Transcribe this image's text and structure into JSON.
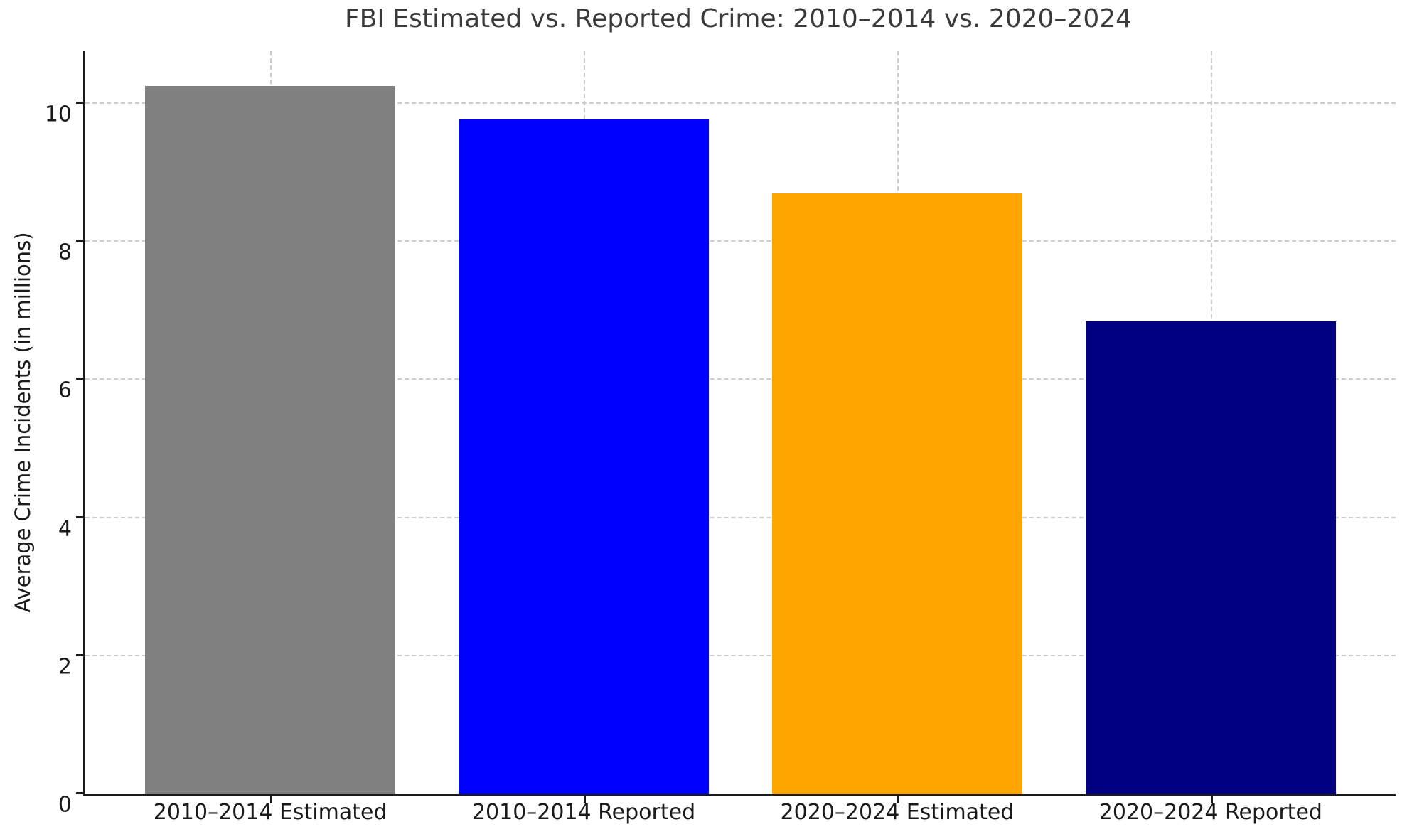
{
  "figure": {
    "title": "FBI Estimated vs. Reported Crime: 2010–2014 vs. 2020–2024",
    "ylabel": "Average Crime Incidents (in millions)"
  },
  "chart_data": {
    "type": "bar",
    "title": "FBI Estimated vs. Reported Crime: 2010–2014 vs. 2020–2024",
    "xlabel": "",
    "ylabel": "Average Crime Incidents (in millions)",
    "categories": [
      "2010–2014 Estimated",
      "2010–2014 Reported",
      "2020–2024 Estimated",
      "2020–2024 Reported"
    ],
    "values": [
      10.26,
      9.77,
      8.7,
      6.85
    ],
    "bar_colors": [
      "#808080",
      "#0000ff",
      "#ffa500",
      "#000080"
    ],
    "ylim": [
      0,
      10.76
    ],
    "yticks": [
      0,
      2,
      4,
      6,
      8,
      10
    ],
    "grid": true,
    "grid_axis": "both",
    "grid_style": "dashed",
    "grid_color": "#cccccc",
    "legend_position": "none",
    "bar_width_fraction": 0.8
  },
  "colors": {
    "title_text": "#3a3a3a",
    "tick_text": "#1a1a1a",
    "spine": "#1a1a1a",
    "background": "#ffffff"
  }
}
